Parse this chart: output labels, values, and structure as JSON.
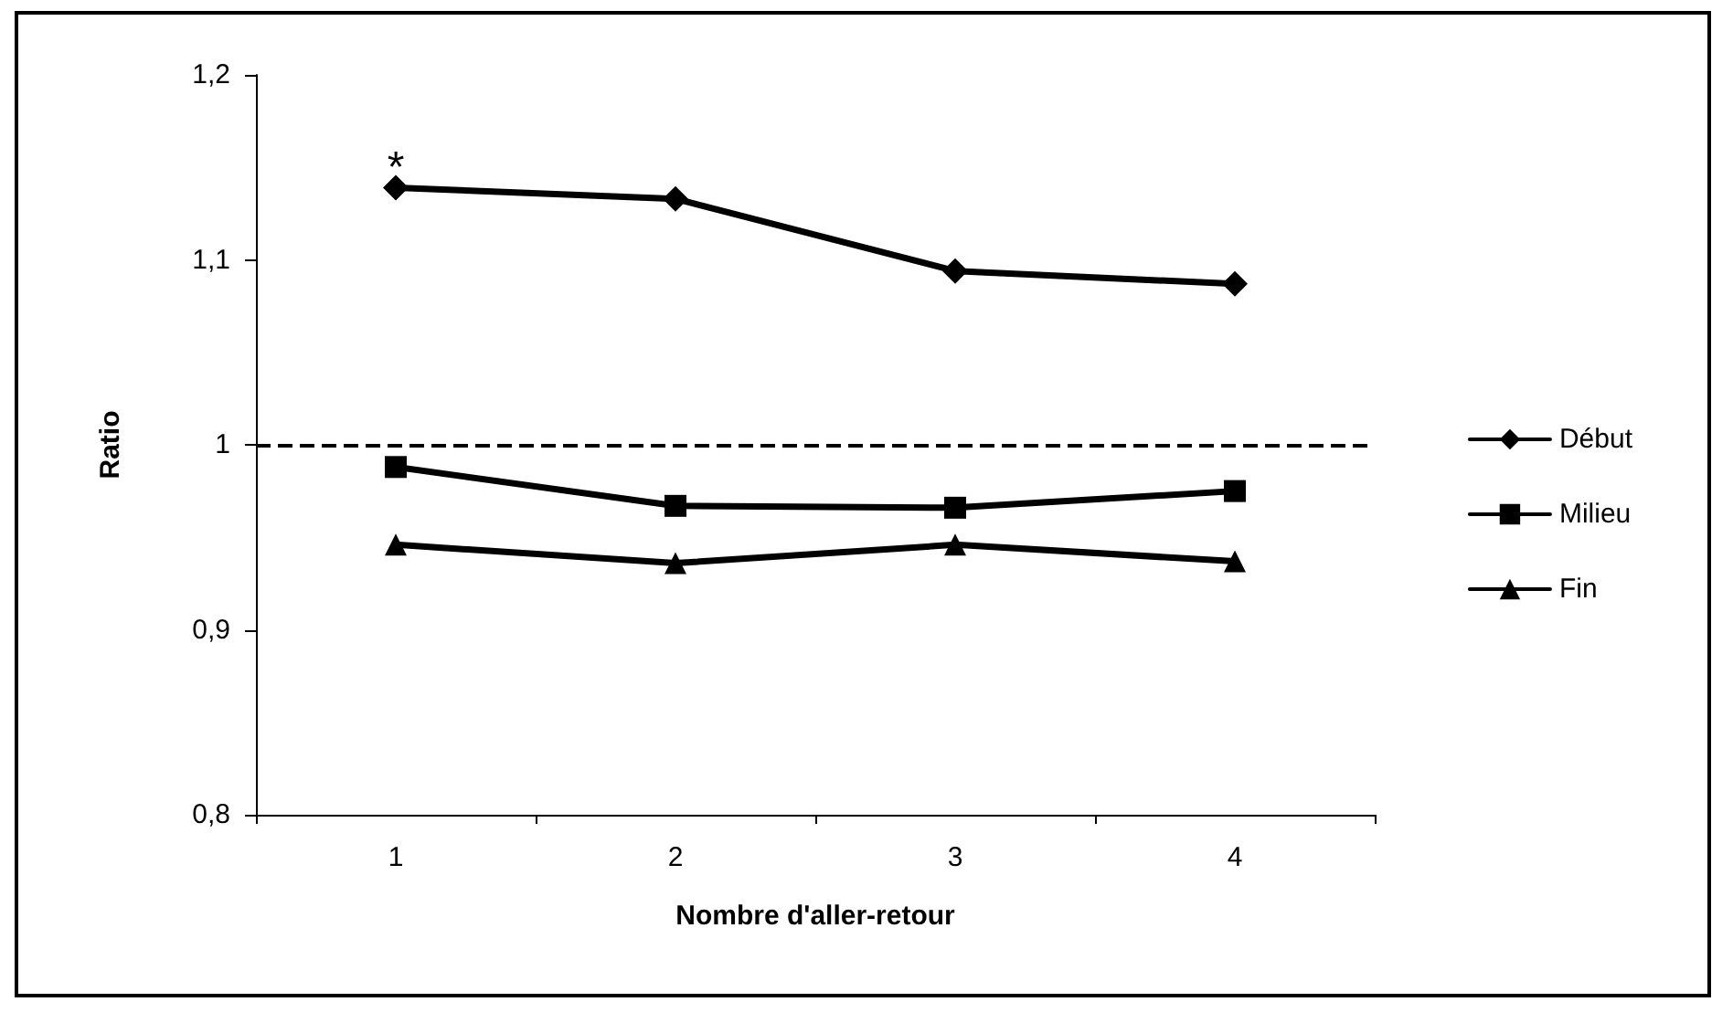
{
  "chart_data": {
    "type": "line",
    "xlabel": "Nombre d'aller-retour",
    "ylabel": "Ratio",
    "categories": [
      "1",
      "2",
      "3",
      "4"
    ],
    "series": [
      {
        "name": "Début",
        "color": "#000000",
        "marker": "diamond",
        "values": [
          1.139,
          1.133,
          1.094,
          1.087
        ]
      },
      {
        "name": "Milieu",
        "color": "#000000",
        "marker": "square",
        "values": [
          0.988,
          0.967,
          0.966,
          0.975
        ]
      },
      {
        "name": "Fin",
        "color": "#000000",
        "marker": "triangle",
        "values": [
          0.946,
          0.936,
          0.946,
          0.937
        ]
      }
    ],
    "ylim": [
      0.8,
      1.2
    ],
    "yticks": [
      {
        "value": 0.8,
        "label": "0,8"
      },
      {
        "value": 0.9,
        "label": "0,9"
      },
      {
        "value": 1,
        "label": "1"
      },
      {
        "value": 1.1,
        "label": "1,1"
      },
      {
        "value": 1.2,
        "label": "1,2"
      }
    ],
    "ref_lines": [
      {
        "axis": "y",
        "value": 1,
        "line_style": "dashed",
        "color": "#000000"
      }
    ],
    "annotations": [
      "*"
    ],
    "grid": false,
    "legend": "right",
    "line_style": "solid"
  }
}
